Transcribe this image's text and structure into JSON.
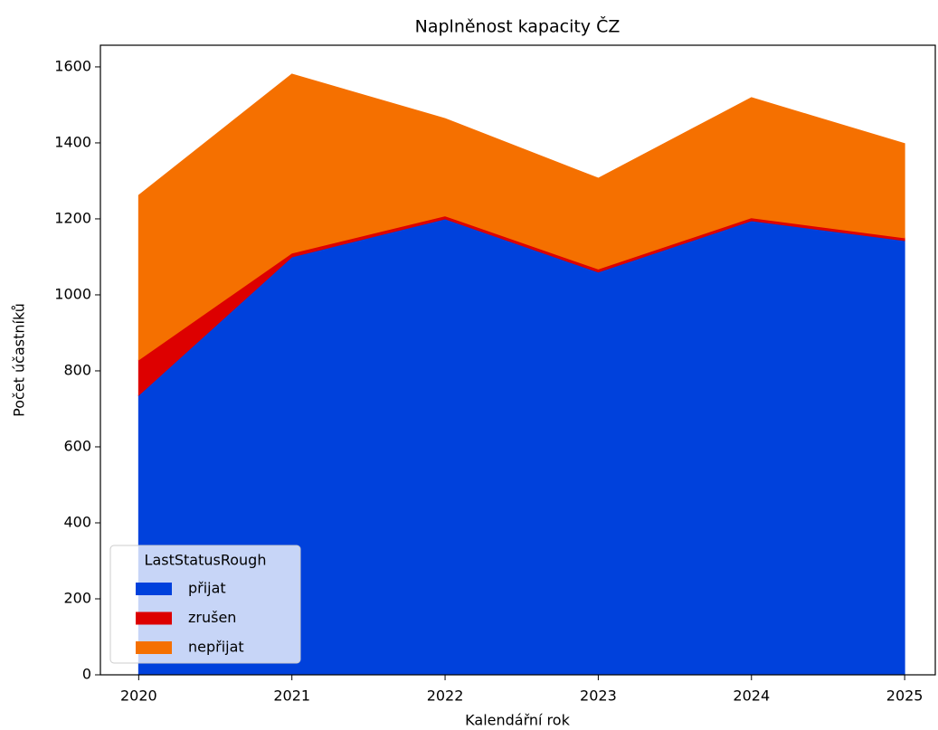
{
  "chart_data": {
    "type": "stacked_area",
    "title": "Naplněnost kapacity ČZ",
    "x_label": "Kalendářní rok",
    "y_label": "Počet účastníků",
    "x": [
      2020,
      2021,
      2022,
      2023,
      2024,
      2025
    ],
    "series": [
      {
        "name": "přijat",
        "color": "#0041dc",
        "values": [
          736,
          1100,
          1200,
          1060,
          1195,
          1143
        ]
      },
      {
        "name": "zrušen",
        "color": "#dd0000",
        "values": [
          93,
          10,
          8,
          8,
          8,
          7
        ]
      },
      {
        "name": "nepřijat",
        "color": "#f57000",
        "values": [
          433,
          471,
          256,
          239,
          316,
          248
        ]
      }
    ],
    "xlim": [
      2019.75,
      2025.2
    ],
    "xticks": [
      2020,
      2021,
      2022,
      2023,
      2024,
      2025
    ],
    "ylim": [
      0,
      1657
    ],
    "yticks": [
      0,
      200,
      400,
      600,
      800,
      1000,
      1200,
      1400,
      1600
    ],
    "legend_title": "LastStatusRough",
    "legend_position": "lower left"
  }
}
